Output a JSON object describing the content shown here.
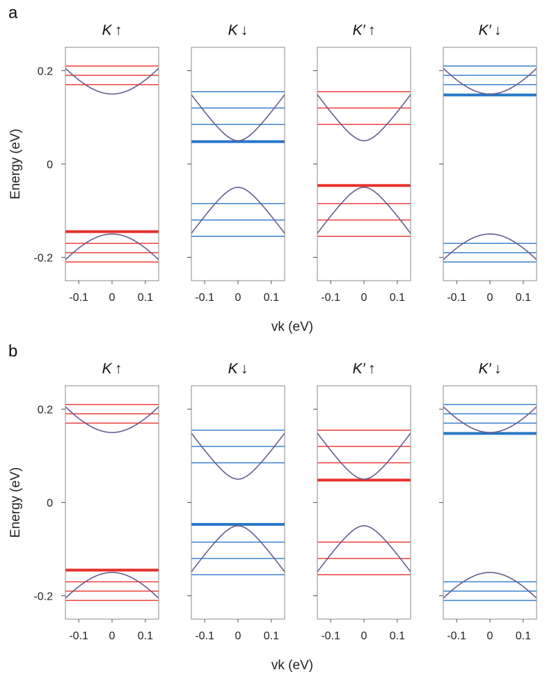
{
  "chart_data": [
    {
      "panel_label": "a",
      "type": "line",
      "ylabel": "Energy (eV)",
      "xlabel": "vk (eV)",
      "ylim": [
        -0.25,
        0.25
      ],
      "xlim": [
        -0.14,
        0.14
      ],
      "yticks": [
        0.2,
        0,
        -0.2
      ],
      "ytick_labels": [
        "0.2",
        "0",
        "-0.2"
      ],
      "xticks": [
        -0.1,
        0,
        0.1
      ],
      "xtick_labels": [
        "-0.1",
        "0",
        "0.1"
      ],
      "band_color": "#6a5a8e",
      "subplots": [
        {
          "title": "K ↑",
          "color": "#e8302a",
          "bands": [
            {
              "E0": 0.15,
              "sign": 1
            },
            {
              "E0": -0.15,
              "sign": -1
            }
          ],
          "levels": [
            0.21,
            0.19,
            0.17,
            -0.17,
            -0.19,
            -0.21
          ],
          "zero_mode_level": -0.145
        },
        {
          "title": "K ↓",
          "color": "#2878c8",
          "bands": [
            {
              "E0": 0.05,
              "sign": 1
            },
            {
              "E0": -0.05,
              "sign": -1
            }
          ],
          "levels": [
            0.155,
            0.12,
            0.085,
            -0.085,
            -0.12,
            -0.155
          ],
          "zero_mode_level": 0.048
        },
        {
          "title": "K′ ↑",
          "color": "#e8302a",
          "bands": [
            {
              "E0": 0.05,
              "sign": 1
            },
            {
              "E0": -0.05,
              "sign": -1
            }
          ],
          "levels": [
            0.155,
            0.12,
            0.085,
            -0.085,
            -0.12,
            -0.155
          ],
          "zero_mode_level": -0.046
        },
        {
          "title": "K′ ↓",
          "color": "#2878c8",
          "bands": [
            {
              "E0": 0.15,
              "sign": 1
            },
            {
              "E0": -0.15,
              "sign": -1
            }
          ],
          "levels": [
            0.21,
            0.19,
            0.17,
            -0.17,
            -0.19,
            -0.21
          ],
          "zero_mode_level": 0.148
        }
      ]
    },
    {
      "panel_label": "b",
      "type": "line",
      "ylabel": "Energy (eV)",
      "xlabel": "vk (eV)",
      "ylim": [
        -0.25,
        0.25
      ],
      "xlim": [
        -0.14,
        0.14
      ],
      "yticks": [
        0.2,
        0,
        -0.2
      ],
      "ytick_labels": [
        "0.2",
        "0",
        "-0.2"
      ],
      "xticks": [
        -0.1,
        0,
        0.1
      ],
      "xtick_labels": [
        "-0.1",
        "0",
        "0.1"
      ],
      "band_color": "#6a5a8e",
      "subplots": [
        {
          "title": "K ↑",
          "color": "#e8302a",
          "bands": [
            {
              "E0": 0.15,
              "sign": 1
            },
            {
              "E0": -0.15,
              "sign": -1
            }
          ],
          "levels": [
            0.21,
            0.19,
            0.17,
            -0.17,
            -0.19,
            -0.21
          ],
          "zero_mode_level": -0.145
        },
        {
          "title": "K ↓",
          "color": "#2878c8",
          "bands": [
            {
              "E0": 0.05,
              "sign": 1
            },
            {
              "E0": -0.05,
              "sign": -1
            }
          ],
          "levels": [
            0.155,
            0.12,
            0.085,
            -0.085,
            -0.12,
            -0.155
          ],
          "zero_mode_level": -0.047
        },
        {
          "title": "K′ ↑",
          "color": "#e8302a",
          "bands": [
            {
              "E0": 0.05,
              "sign": 1
            },
            {
              "E0": -0.05,
              "sign": -1
            }
          ],
          "levels": [
            0.155,
            0.12,
            0.085,
            -0.085,
            -0.12,
            -0.155
          ],
          "zero_mode_level": 0.048
        },
        {
          "title": "K′ ↓",
          "color": "#2878c8",
          "bands": [
            {
              "E0": 0.15,
              "sign": 1
            },
            {
              "E0": -0.15,
              "sign": -1
            }
          ],
          "levels": [
            0.21,
            0.19,
            0.17,
            -0.17,
            -0.19,
            -0.21
          ],
          "zero_mode_level": 0.148
        }
      ]
    }
  ]
}
